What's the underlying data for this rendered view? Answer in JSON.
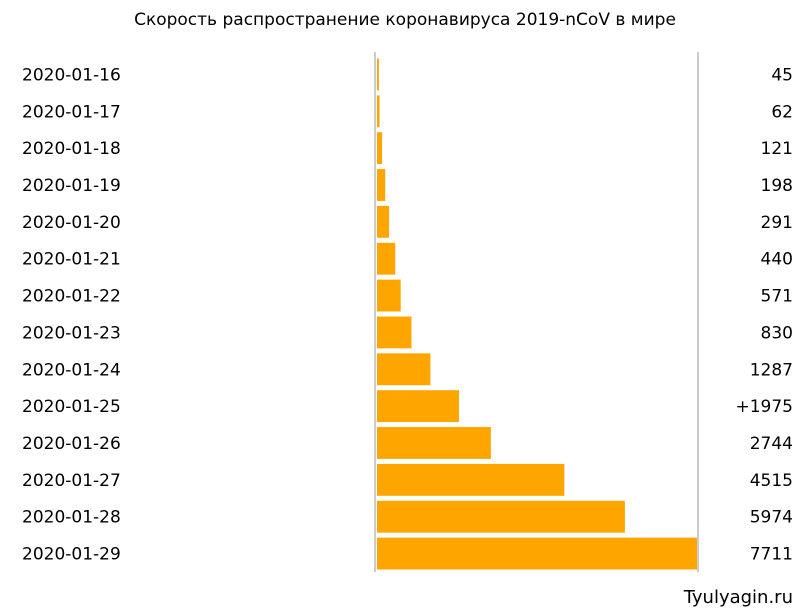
{
  "chart_data": {
    "type": "bar",
    "orientation": "horizontal",
    "title": "Скорость распространение коронавируса 2019-nCoV в мире",
    "categories": [
      "2020-01-16",
      "2020-01-17",
      "2020-01-18",
      "2020-01-19",
      "2020-01-20",
      "2020-01-21",
      "2020-01-22",
      "2020-01-23",
      "2020-01-24",
      "2020-01-25",
      "2020-01-26",
      "2020-01-27",
      "2020-01-28",
      "2020-01-29"
    ],
    "values": [
      45,
      62,
      121,
      198,
      291,
      440,
      571,
      830,
      1287,
      1975,
      2744,
      4515,
      5974,
      7711
    ],
    "value_labels": [
      "45",
      "62",
      "121",
      "198",
      "291",
      "440",
      "571",
      "830",
      "1287",
      "+1975",
      "2744",
      "4515",
      "5974",
      "7711"
    ],
    "xlim": [
      0,
      7711
    ],
    "bar_color": "#FFA500",
    "axis_color": "#cccccc",
    "grid": false,
    "legend": "none"
  },
  "watermark": "Tyulyagin.ru"
}
